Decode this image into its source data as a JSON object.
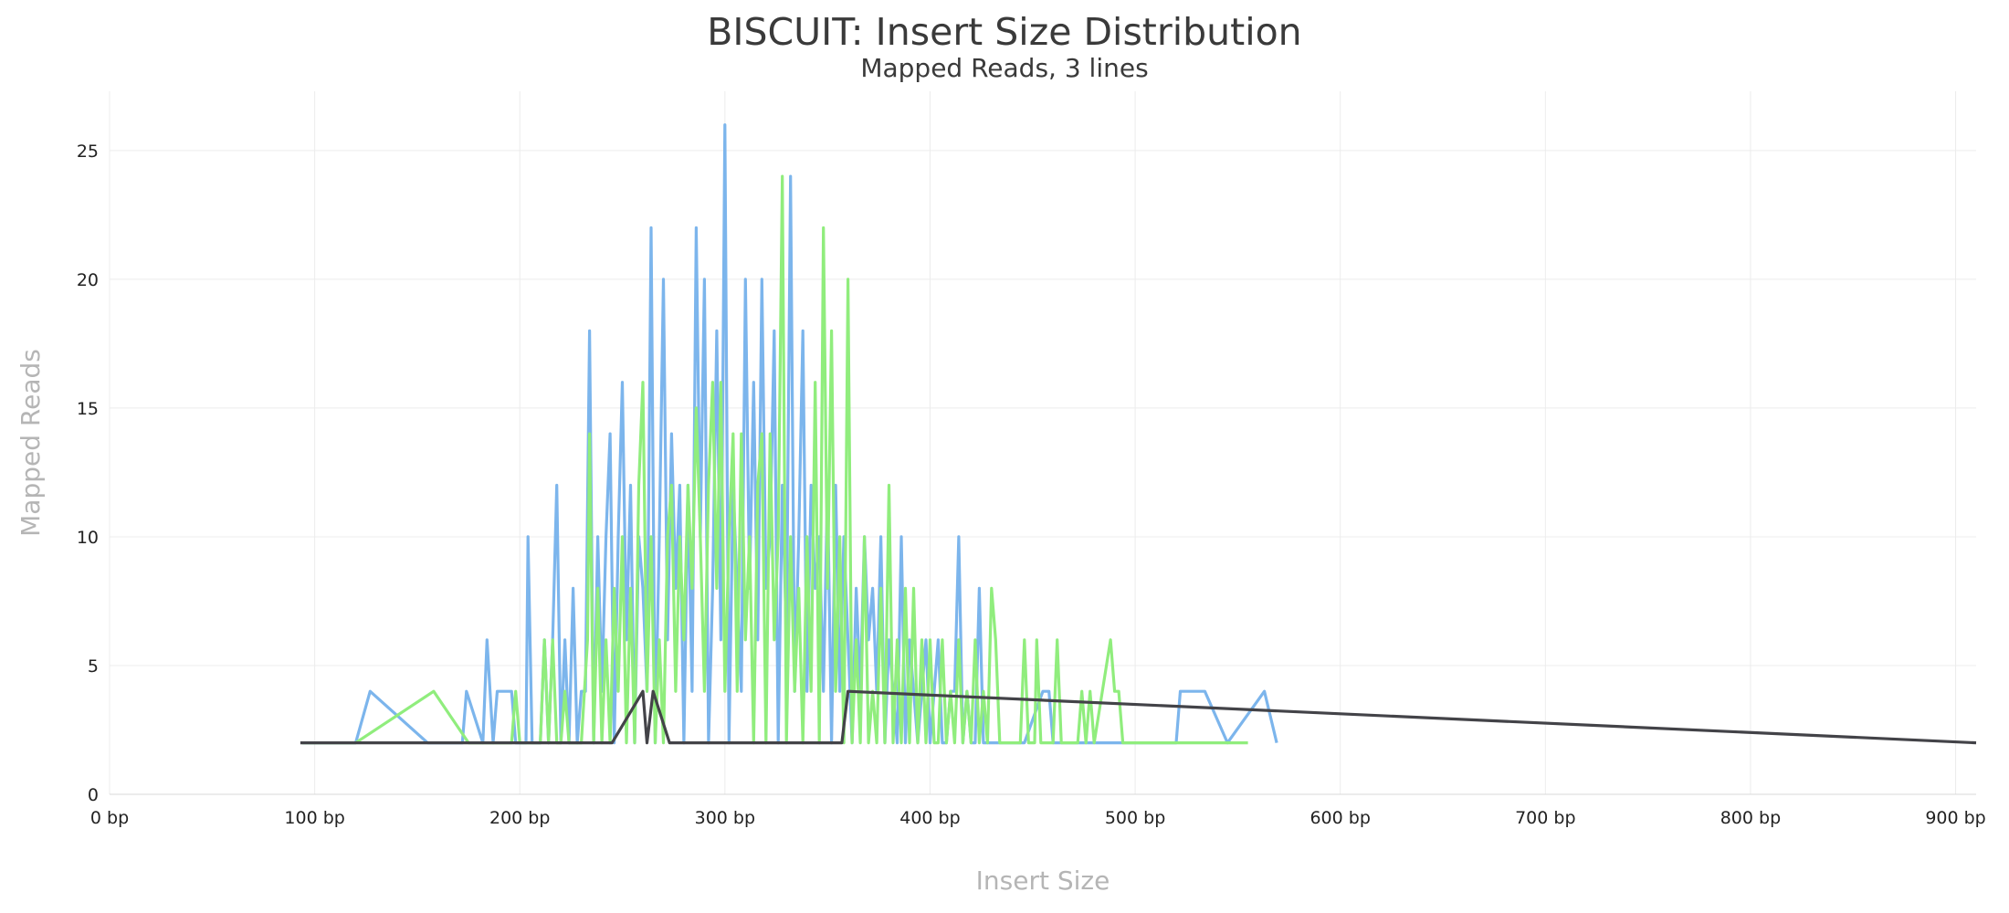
{
  "chart_data": {
    "type": "line",
    "title": "BISCUIT: Insert Size Distribution",
    "subtitle": "Mapped Reads, 3 lines",
    "xlabel": "Insert Size",
    "ylabel": "Mapped Reads",
    "xlim": [
      0,
      910
    ],
    "ylim": [
      0,
      27.3
    ],
    "x_ticks": [
      0,
      100,
      200,
      300,
      400,
      500,
      600,
      700,
      800,
      900
    ],
    "x_tick_labels": [
      "0 bp",
      "100 bp",
      "200 bp",
      "300 bp",
      "400 bp",
      "500 bp",
      "600 bp",
      "700 bp",
      "800 bp",
      "900 bp"
    ],
    "y_ticks": [
      0,
      5,
      10,
      15,
      20,
      25
    ],
    "y_tick_labels": [
      "0",
      "5",
      "10",
      "15",
      "20",
      "25"
    ],
    "grid": true,
    "legend": "none",
    "series": [
      {
        "color": "#7cb5ec",
        "points": [
          [
            94,
            2
          ],
          [
            120,
            2
          ],
          [
            127,
            4
          ],
          [
            155,
            2
          ],
          [
            172,
            2
          ],
          [
            174,
            4
          ],
          [
            182,
            2
          ],
          [
            184,
            6
          ],
          [
            187,
            2
          ],
          [
            189,
            4
          ],
          [
            196,
            4
          ],
          [
            198,
            2
          ],
          [
            203,
            2
          ],
          [
            204,
            10
          ],
          [
            206,
            2
          ],
          [
            210,
            2
          ],
          [
            212,
            6
          ],
          [
            214,
            2
          ],
          [
            216,
            6
          ],
          [
            218,
            12
          ],
          [
            220,
            2
          ],
          [
            222,
            6
          ],
          [
            224,
            2
          ],
          [
            226,
            8
          ],
          [
            228,
            2
          ],
          [
            230,
            4
          ],
          [
            232,
            4
          ],
          [
            234,
            18
          ],
          [
            236,
            2
          ],
          [
            238,
            10
          ],
          [
            240,
            4
          ],
          [
            242,
            10
          ],
          [
            244,
            14
          ],
          [
            246,
            2
          ],
          [
            248,
            10
          ],
          [
            250,
            16
          ],
          [
            252,
            6
          ],
          [
            254,
            12
          ],
          [
            256,
            2
          ],
          [
            258,
            10
          ],
          [
            260,
            8
          ],
          [
            262,
            4
          ],
          [
            264,
            22
          ],
          [
            266,
            2
          ],
          [
            268,
            10
          ],
          [
            270,
            20
          ],
          [
            272,
            6
          ],
          [
            274,
            14
          ],
          [
            276,
            8
          ],
          [
            278,
            12
          ],
          [
            280,
            2
          ],
          [
            282,
            12
          ],
          [
            284,
            4
          ],
          [
            286,
            22
          ],
          [
            288,
            10
          ],
          [
            290,
            20
          ],
          [
            292,
            2
          ],
          [
            294,
            8
          ],
          [
            296,
            18
          ],
          [
            298,
            6
          ],
          [
            300,
            26
          ],
          [
            302,
            2
          ],
          [
            304,
            12
          ],
          [
            306,
            8
          ],
          [
            308,
            4
          ],
          [
            310,
            20
          ],
          [
            312,
            8
          ],
          [
            314,
            16
          ],
          [
            316,
            6
          ],
          [
            318,
            20
          ],
          [
            320,
            8
          ],
          [
            322,
            10
          ],
          [
            324,
            18
          ],
          [
            326,
            2
          ],
          [
            328,
            12
          ],
          [
            330,
            6
          ],
          [
            332,
            24
          ],
          [
            334,
            4
          ],
          [
            336,
            10
          ],
          [
            338,
            18
          ],
          [
            340,
            4
          ],
          [
            342,
            12
          ],
          [
            344,
            8
          ],
          [
            346,
            10
          ],
          [
            348,
            4
          ],
          [
            350,
            12
          ],
          [
            352,
            2
          ],
          [
            354,
            12
          ],
          [
            356,
            4
          ],
          [
            358,
            10
          ],
          [
            360,
            6
          ],
          [
            362,
            2
          ],
          [
            364,
            8
          ],
          [
            366,
            4
          ],
          [
            368,
            10
          ],
          [
            370,
            6
          ],
          [
            372,
            8
          ],
          [
            374,
            4
          ],
          [
            376,
            10
          ],
          [
            378,
            2
          ],
          [
            380,
            6
          ],
          [
            382,
            4
          ],
          [
            384,
            2
          ],
          [
            386,
            10
          ],
          [
            388,
            2
          ],
          [
            390,
            6
          ],
          [
            392,
            4
          ],
          [
            394,
            2
          ],
          [
            396,
            4
          ],
          [
            398,
            6
          ],
          [
            400,
            2
          ],
          [
            402,
            4
          ],
          [
            404,
            6
          ],
          [
            406,
            2
          ],
          [
            408,
            2
          ],
          [
            410,
            4
          ],
          [
            412,
            4
          ],
          [
            414,
            10
          ],
          [
            416,
            2
          ],
          [
            418,
            4
          ],
          [
            420,
            2
          ],
          [
            422,
            2
          ],
          [
            424,
            8
          ],
          [
            426,
            2
          ],
          [
            430,
            2
          ],
          [
            440,
            2
          ],
          [
            446,
            2
          ],
          [
            455,
            4
          ],
          [
            458,
            4
          ],
          [
            460,
            2
          ],
          [
            500,
            2
          ],
          [
            520,
            2
          ],
          [
            522,
            4
          ],
          [
            534,
            4
          ],
          [
            545,
            2
          ],
          [
            563,
            4
          ],
          [
            569,
            2
          ]
        ]
      },
      {
        "color": "#90ed7d",
        "points": [
          [
            94,
            2
          ],
          [
            120,
            2
          ],
          [
            158,
            4
          ],
          [
            175,
            2
          ],
          [
            196,
            2
          ],
          [
            198,
            4
          ],
          [
            200,
            2
          ],
          [
            205,
            2
          ],
          [
            210,
            2
          ],
          [
            212,
            6
          ],
          [
            214,
            2
          ],
          [
            216,
            6
          ],
          [
            218,
            2
          ],
          [
            220,
            2
          ],
          [
            222,
            4
          ],
          [
            224,
            2
          ],
          [
            228,
            2
          ],
          [
            230,
            2
          ],
          [
            233,
            6
          ],
          [
            234,
            14
          ],
          [
            236,
            2
          ],
          [
            238,
            8
          ],
          [
            240,
            2
          ],
          [
            242,
            6
          ],
          [
            244,
            2
          ],
          [
            246,
            8
          ],
          [
            248,
            4
          ],
          [
            250,
            10
          ],
          [
            252,
            2
          ],
          [
            254,
            8
          ],
          [
            256,
            2
          ],
          [
            258,
            12
          ],
          [
            260,
            16
          ],
          [
            262,
            4
          ],
          [
            264,
            10
          ],
          [
            266,
            2
          ],
          [
            268,
            6
          ],
          [
            270,
            2
          ],
          [
            272,
            10
          ],
          [
            274,
            12
          ],
          [
            276,
            4
          ],
          [
            278,
            10
          ],
          [
            280,
            6
          ],
          [
            282,
            12
          ],
          [
            284,
            8
          ],
          [
            286,
            15
          ],
          [
            288,
            10
          ],
          [
            290,
            4
          ],
          [
            292,
            12
          ],
          [
            294,
            16
          ],
          [
            296,
            8
          ],
          [
            298,
            16
          ],
          [
            300,
            4
          ],
          [
            302,
            10
          ],
          [
            304,
            14
          ],
          [
            306,
            4
          ],
          [
            308,
            14
          ],
          [
            310,
            6
          ],
          [
            312,
            10
          ],
          [
            314,
            2
          ],
          [
            316,
            12
          ],
          [
            318,
            14
          ],
          [
            320,
            2
          ],
          [
            322,
            14
          ],
          [
            324,
            6
          ],
          [
            326,
            10
          ],
          [
            328,
            24
          ],
          [
            330,
            2
          ],
          [
            332,
            10
          ],
          [
            334,
            4
          ],
          [
            336,
            8
          ],
          [
            338,
            2
          ],
          [
            340,
            10
          ],
          [
            342,
            4
          ],
          [
            344,
            16
          ],
          [
            346,
            2
          ],
          [
            348,
            22
          ],
          [
            350,
            8
          ],
          [
            352,
            18
          ],
          [
            354,
            4
          ],
          [
            356,
            10
          ],
          [
            358,
            2
          ],
          [
            360,
            20
          ],
          [
            362,
            2
          ],
          [
            364,
            6
          ],
          [
            366,
            2
          ],
          [
            368,
            10
          ],
          [
            370,
            2
          ],
          [
            372,
            4
          ],
          [
            374,
            2
          ],
          [
            376,
            8
          ],
          [
            378,
            2
          ],
          [
            380,
            12
          ],
          [
            382,
            2
          ],
          [
            384,
            6
          ],
          [
            386,
            2
          ],
          [
            388,
            8
          ],
          [
            390,
            2
          ],
          [
            392,
            8
          ],
          [
            394,
            2
          ],
          [
            396,
            6
          ],
          [
            398,
            2
          ],
          [
            400,
            6
          ],
          [
            402,
            2
          ],
          [
            404,
            2
          ],
          [
            406,
            6
          ],
          [
            408,
            2
          ],
          [
            410,
            4
          ],
          [
            412,
            2
          ],
          [
            414,
            6
          ],
          [
            416,
            2
          ],
          [
            418,
            4
          ],
          [
            420,
            2
          ],
          [
            422,
            6
          ],
          [
            424,
            2
          ],
          [
            426,
            4
          ],
          [
            428,
            2
          ],
          [
            430,
            8
          ],
          [
            432,
            6
          ],
          [
            434,
            2
          ],
          [
            444,
            2
          ],
          [
            446,
            6
          ],
          [
            448,
            2
          ],
          [
            451,
            2
          ],
          [
            452,
            6
          ],
          [
            454,
            2
          ],
          [
            460,
            2
          ],
          [
            462,
            6
          ],
          [
            464,
            2
          ],
          [
            472,
            2
          ],
          [
            474,
            4
          ],
          [
            476,
            2
          ],
          [
            478,
            4
          ],
          [
            480,
            2
          ],
          [
            488,
            6
          ],
          [
            490,
            4
          ],
          [
            492,
            4
          ],
          [
            494,
            2
          ],
          [
            555,
            2
          ]
        ]
      },
      {
        "color": "#434348",
        "points": [
          [
            93,
            2
          ],
          [
            245,
            2
          ],
          [
            260,
            4
          ],
          [
            262,
            2
          ],
          [
            265,
            4
          ],
          [
            273,
            2
          ],
          [
            357,
            2
          ],
          [
            360,
            4
          ],
          [
            910,
            2
          ]
        ]
      }
    ]
  }
}
